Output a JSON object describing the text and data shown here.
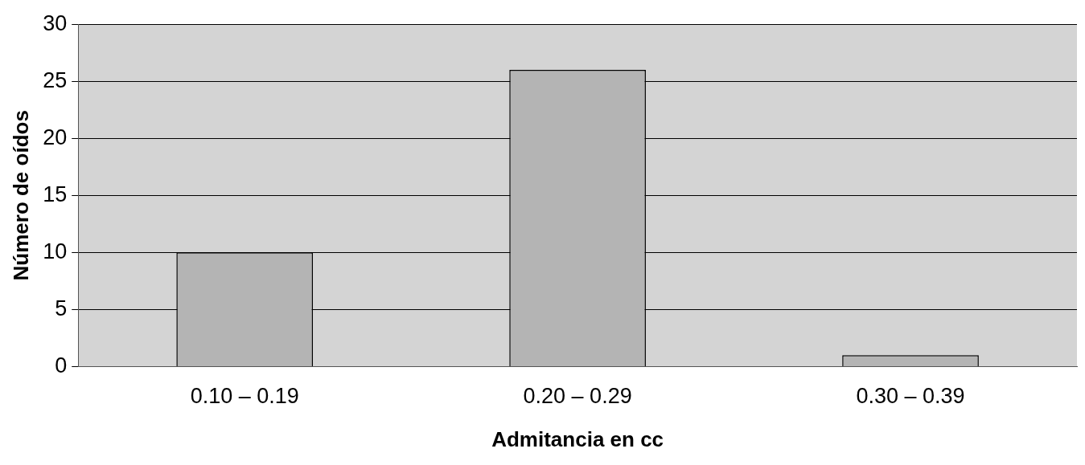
{
  "chart_data": {
    "type": "bar",
    "xlabel": "Admitancia en cc",
    "ylabel": "Número de oídos",
    "categories": [
      "0.10 – 0.19",
      "0.20 – 0.29",
      "0.30 – 0.39"
    ],
    "values": [
      10,
      26,
      1
    ],
    "color": "#b4b4b4",
    "ylim": [
      0,
      30
    ],
    "yticks": [
      0,
      5,
      10,
      15,
      20,
      25,
      30
    ],
    "grid": "y",
    "legend": false
  }
}
